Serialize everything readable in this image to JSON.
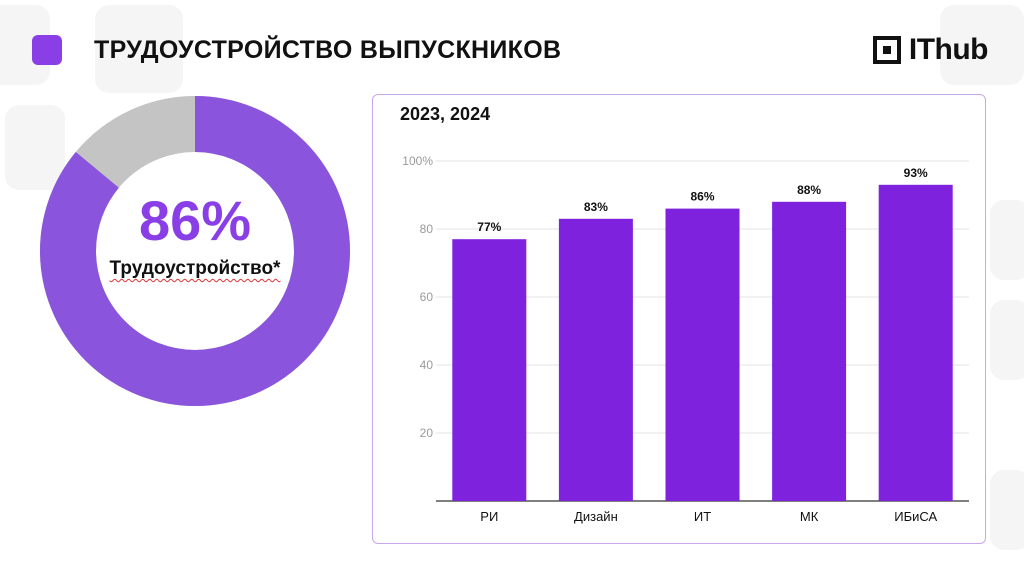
{
  "header": {
    "title": "ТРУДОУСТРОЙСТВО ВЫПУСКНИКОВ",
    "accent_color": "#8a3fe6"
  },
  "logo": {
    "text": "IThub",
    "icon": "ithub-logo-icon"
  },
  "donut": {
    "value_text": "86%",
    "label": "Трудоустройство*",
    "fraction": 0.86,
    "fill_color": "#8a55dc",
    "rest_color": "#c4c4c4"
  },
  "chart_data": {
    "type": "bar",
    "title": "2023, 2024",
    "categories": [
      "РИ",
      "Дизайн",
      "ИТ",
      "МК",
      "ИБиСА"
    ],
    "values": [
      77,
      83,
      86,
      88,
      93
    ],
    "data_labels": [
      "77%",
      "83%",
      "86%",
      "88%",
      "93%"
    ],
    "y_ticks": [
      20,
      40,
      60,
      80,
      100
    ],
    "y_tick_labels": [
      "20",
      "40",
      "60",
      "80",
      "100%"
    ],
    "ylim": [
      0,
      100
    ],
    "grid": true,
    "bar_color": "#7e22dd",
    "xlabel": "",
    "ylabel": ""
  }
}
